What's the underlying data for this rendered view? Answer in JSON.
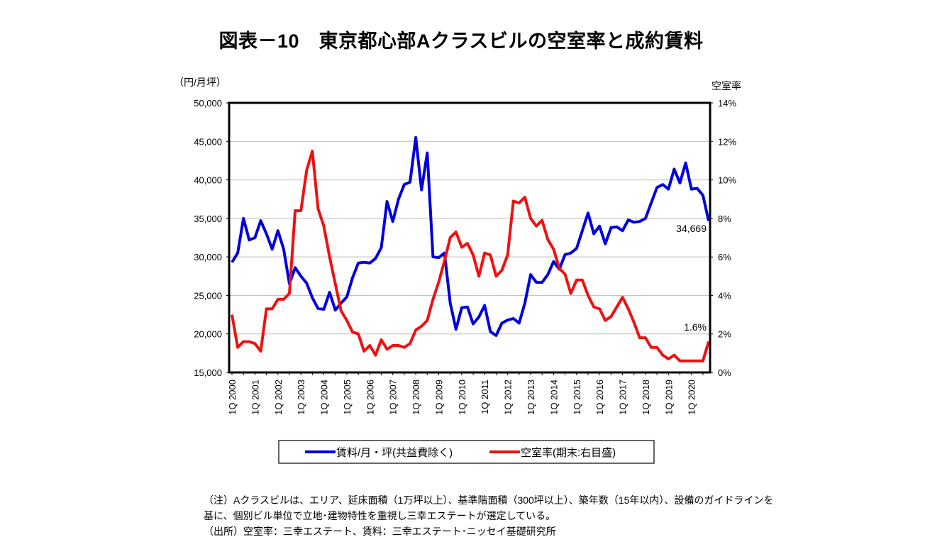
{
  "chart_data": {
    "type": "line",
    "title": "図表－10　東京都心部Aクラスビルの空室率と成約賃料",
    "ylabel_left": "（円/月坪）",
    "ylabel_right": "空室率",
    "ylim_left": [
      15000,
      50000
    ],
    "yticks_left": [
      "15,000",
      "20,000",
      "25,000",
      "30,000",
      "35,000",
      "40,000",
      "45,000",
      "50,000"
    ],
    "ylim_right": [
      0,
      14
    ],
    "yticks_right": [
      "0%",
      "2%",
      "4%",
      "6%",
      "8%",
      "10%",
      "12%",
      "14%"
    ],
    "xticks": [
      "1Q 2000",
      "1Q 2001",
      "1Q 2002",
      "1Q 2003",
      "1Q 2004",
      "1Q 2005",
      "1Q 2006",
      "1Q 2007",
      "1Q 2008",
      "1Q 2009",
      "1Q 2010",
      "1Q 2011",
      "1Q 2012",
      "1Q 2013",
      "1Q 2014",
      "1Q 2015",
      "1Q 2016",
      "1Q 2017",
      "1Q 2018",
      "1Q 2019",
      "1Q 2020"
    ],
    "x_range": [
      "1Q 2000",
      "4Q 2020"
    ],
    "grid": true,
    "legend_position": "bottom",
    "series": [
      {
        "name": "賃料/月・坪(共益費除く)",
        "axis": "left",
        "color": "#0000dd",
        "values": [
          29300,
          30500,
          35000,
          32200,
          32500,
          34700,
          33000,
          31000,
          33400,
          31000,
          26500,
          28600,
          27500,
          26600,
          24700,
          23300,
          23200,
          25400,
          23100,
          24000,
          24800,
          27300,
          29200,
          29300,
          29200,
          29800,
          31200,
          37200,
          34600,
          37500,
          39400,
          39700,
          45500,
          38700,
          43500,
          30000,
          29900,
          30500,
          24000,
          20600,
          23400,
          23500,
          21300,
          22200,
          23700,
          20300,
          19800,
          21400,
          21800,
          22000,
          21400,
          24000,
          27700,
          26700,
          26700,
          27700,
          29400,
          28400,
          30300,
          30500,
          31100,
          33400,
          35700,
          33000,
          34000,
          31700,
          33800,
          33900,
          33400,
          34800,
          34500,
          34600,
          35000,
          37000,
          39000,
          39400,
          38800,
          41400,
          39600,
          42200,
          38800,
          38900,
          38000,
          34669
        ]
      },
      {
        "name": "空室率(期末:右目盛)",
        "axis": "right",
        "color": "#ee1111",
        "values": [
          3.0,
          1.3,
          1.6,
          1.6,
          1.5,
          1.1,
          3.3,
          3.3,
          3.8,
          3.8,
          4.1,
          8.4,
          8.4,
          10.5,
          11.5,
          8.5,
          7.6,
          6.0,
          4.6,
          3.2,
          2.7,
          2.1,
          2.0,
          1.1,
          1.4,
          0.9,
          1.7,
          1.2,
          1.4,
          1.4,
          1.3,
          1.5,
          2.2,
          2.4,
          2.7,
          3.8,
          4.7,
          5.8,
          7.0,
          7.3,
          6.5,
          6.7,
          6.1,
          5.0,
          6.2,
          6.1,
          5.0,
          5.3,
          6.1,
          8.9,
          8.8,
          9.1,
          8.0,
          7.6,
          7.9,
          6.9,
          6.4,
          5.4,
          5.1,
          4.1,
          4.8,
          4.8,
          4.0,
          3.4,
          3.3,
          2.7,
          2.9,
          3.4,
          3.9,
          3.3,
          2.6,
          1.8,
          1.8,
          1.3,
          1.3,
          0.9,
          0.7,
          0.9,
          0.6,
          0.6,
          0.6,
          0.6,
          0.6,
          1.6
        ]
      }
    ],
    "annotations": [
      "34,669",
      "1.6%"
    ]
  },
  "notes": [
    "（注）Aクラスビルは、エリア、延床面積（1万坪以上）、基準階面積（300坪以上）、築年数（15年以内）、設備のガイドラインを",
    "基に、個別ビル単位で立地･建物特性を重視し三幸エステートが選定している。",
    "（出所）空室率：三幸エステート、賃料：三幸エステート･ニッセイ基礎研究所"
  ]
}
